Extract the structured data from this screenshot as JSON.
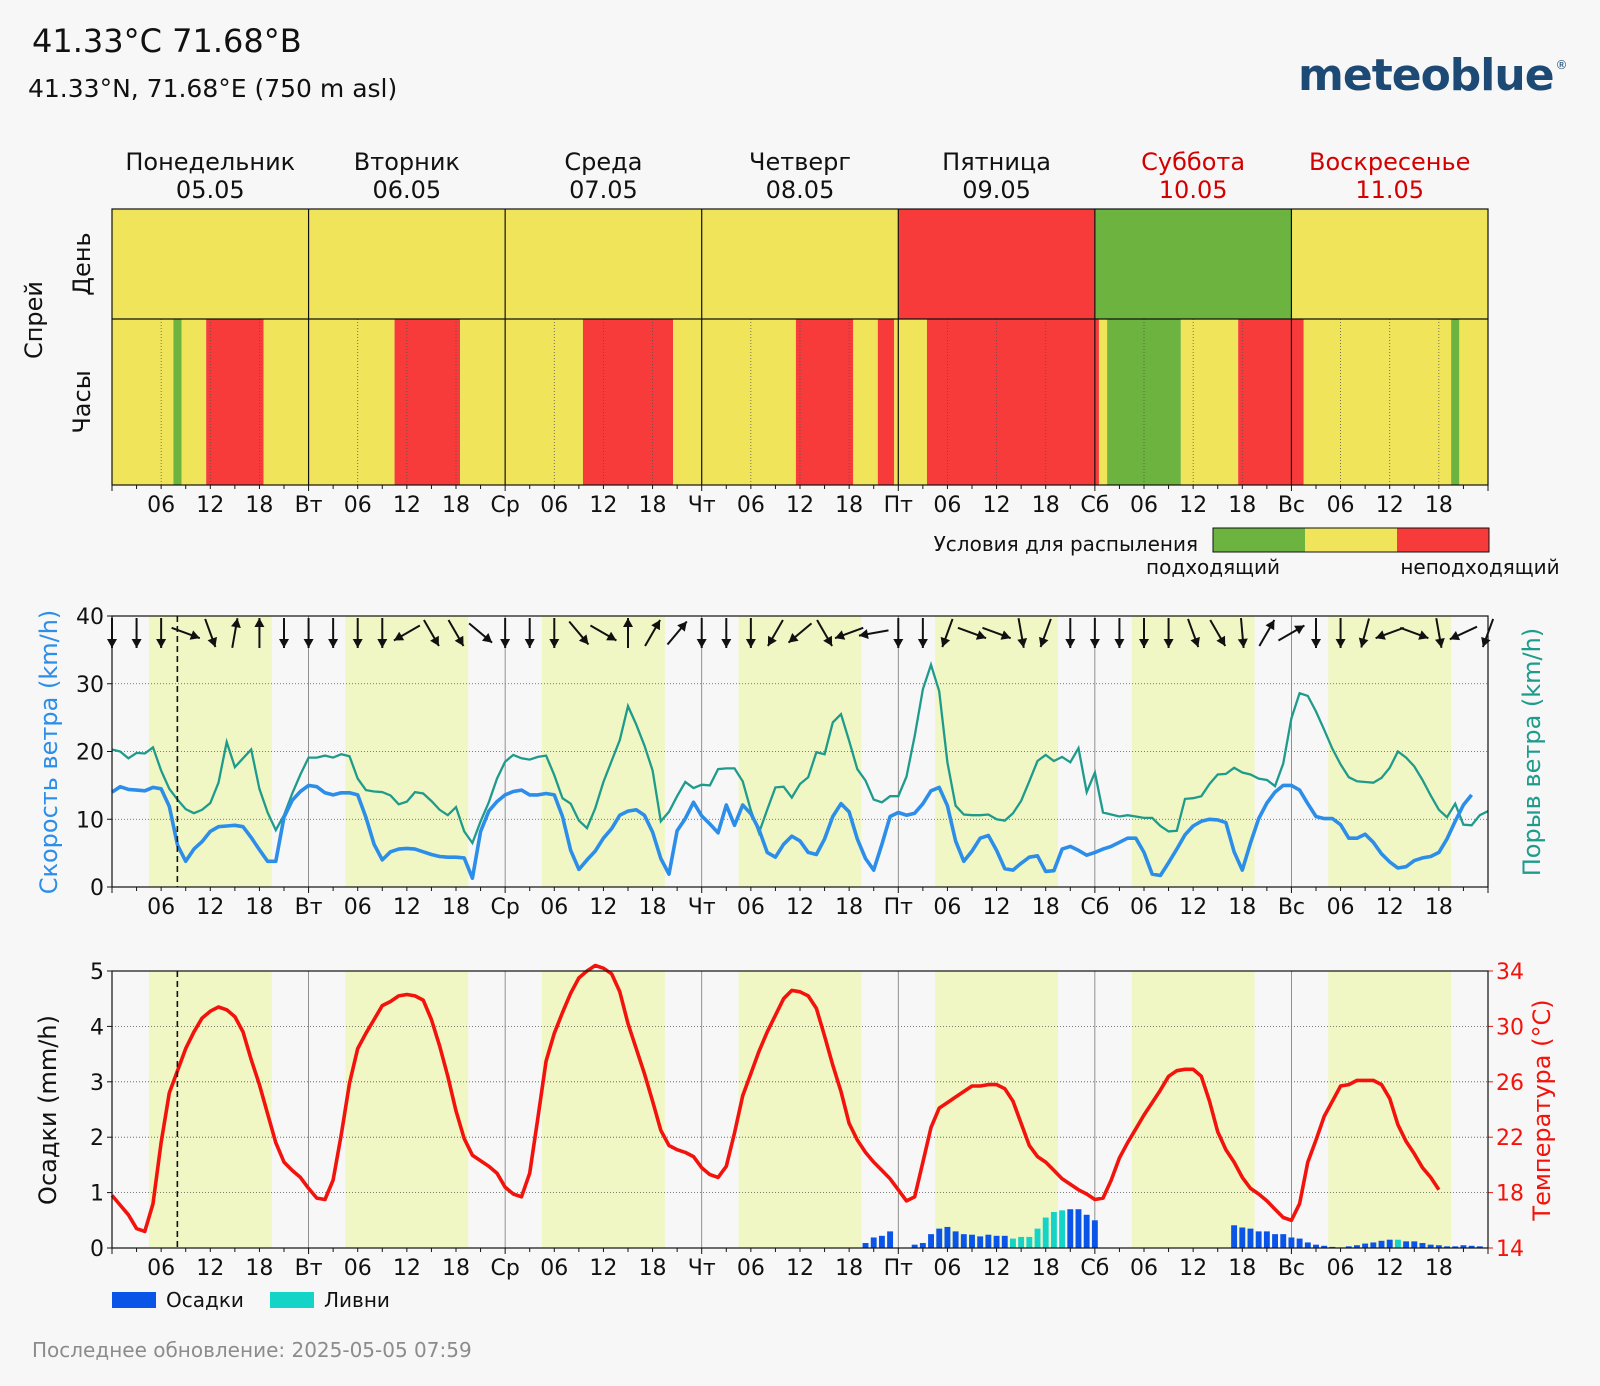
{
  "header": {
    "title": "41.33°C 71.68°В",
    "subtitle": "41.33°N, 71.68°E (750 m asl)",
    "logo": "meteoblue",
    "logo_mark": "®"
  },
  "footer": {
    "updated": "Последнее обновление: 2025-05-05 07:59"
  },
  "colors": {
    "suitable": "#6db33f",
    "neutral": "#f0e55a",
    "unsuitable": "#f73a3a",
    "wind_speed": "#2c8ee8",
    "gust": "#1f9b8c",
    "daylight": "#f1f7c4",
    "temperature": "#f2140c",
    "precip": "#0a55e8",
    "showers": "#14d4c8",
    "weekend": "#d40000"
  },
  "days": [
    {
      "name": "Понедельник",
      "date": "05.05",
      "short": "Пн",
      "weekend": false
    },
    {
      "name": "Вторник",
      "date": "06.05",
      "short": "Вт",
      "weekend": false
    },
    {
      "name": "Среда",
      "date": "07.05",
      "short": "Ср",
      "weekend": false
    },
    {
      "name": "Четверг",
      "date": "08.05",
      "short": "Чт",
      "weekend": false
    },
    {
      "name": "Пятница",
      "date": "09.05",
      "short": "Пт",
      "weekend": false
    },
    {
      "name": "Суббота",
      "date": "10.05",
      "short": "Сб",
      "weekend": true
    },
    {
      "name": "Воскресенье",
      "date": "11.05",
      "short": "Вс",
      "weekend": true
    }
  ],
  "hour_ticks": [
    "06",
    "12",
    "18"
  ],
  "now_hour": 7.98,
  "chart_data": [
    {
      "type": "heatmap",
      "title": "Спрей",
      "row_labels": [
        "День",
        "Часы"
      ],
      "legend": {
        "title": "Условия для распыления",
        "low_label": "подходящий",
        "high_label": "неподходящий"
      },
      "daily": [
        "yellow",
        "yellow",
        "yellow",
        "yellow",
        "red",
        "green",
        "yellow"
      ],
      "hourly_segments": [
        {
          "from": 0,
          "to": 7.5,
          "state": "yellow"
        },
        {
          "from": 7.5,
          "to": 8.5,
          "state": "green"
        },
        {
          "from": 8.5,
          "to": 11.5,
          "state": "yellow"
        },
        {
          "from": 11.5,
          "to": 18.5,
          "state": "red"
        },
        {
          "from": 18.5,
          "to": 34.5,
          "state": "yellow"
        },
        {
          "from": 34.5,
          "to": 42.5,
          "state": "red"
        },
        {
          "from": 42.5,
          "to": 57.5,
          "state": "yellow"
        },
        {
          "from": 57.5,
          "to": 68.5,
          "state": "red"
        },
        {
          "from": 68.5,
          "to": 83.5,
          "state": "yellow"
        },
        {
          "from": 83.5,
          "to": 90.5,
          "state": "red"
        },
        {
          "from": 90.5,
          "to": 93.5,
          "state": "yellow"
        },
        {
          "from": 93.5,
          "to": 95.5,
          "state": "red"
        },
        {
          "from": 95.5,
          "to": 99.5,
          "state": "yellow"
        },
        {
          "from": 99.5,
          "to": 120.5,
          "state": "red"
        },
        {
          "from": 120.5,
          "to": 121.5,
          "state": "yellow"
        },
        {
          "from": 121.5,
          "to": 130.5,
          "state": "green"
        },
        {
          "from": 130.5,
          "to": 137.5,
          "state": "yellow"
        },
        {
          "from": 137.5,
          "to": 145.5,
          "state": "red"
        },
        {
          "from": 145.5,
          "to": 163.5,
          "state": "yellow"
        },
        {
          "from": 163.5,
          "to": 164.5,
          "state": "green"
        },
        {
          "from": 164.5,
          "to": 168,
          "state": "yellow"
        }
      ]
    },
    {
      "type": "line",
      "ylabel": "Скорость ветра (km/h)",
      "y2label": "Порыв ветра (km/h)",
      "ylim": [
        0,
        40
      ],
      "yticks": [
        0,
        10,
        20,
        30,
        40
      ],
      "daylight_hours": [
        4.5,
        19.5
      ],
      "x_hours_wind": [
        0,
        1,
        2,
        3,
        4,
        5,
        6,
        7,
        8,
        9,
        10,
        11,
        12,
        13,
        14,
        15,
        16,
        17,
        18,
        19,
        20,
        21,
        22,
        23,
        24,
        25,
        26,
        27,
        28,
        29,
        30,
        31,
        32,
        33,
        34,
        35,
        36,
        37,
        38,
        39,
        40,
        41,
        42,
        43,
        44,
        45,
        46,
        47,
        48,
        49,
        50,
        51,
        52,
        53,
        54,
        55,
        56,
        57,
        58,
        59,
        60,
        61,
        62,
        63,
        64,
        65,
        66,
        67,
        68,
        69,
        70,
        71,
        72,
        73,
        74,
        75,
        76,
        77,
        78,
        79,
        80,
        81,
        82,
        83,
        84,
        85,
        86,
        87,
        88,
        89,
        90,
        91,
        92,
        93,
        94,
        95,
        96,
        97,
        98,
        99,
        100,
        101,
        102,
        103,
        104,
        105,
        106,
        107,
        108,
        109,
        110,
        111,
        112,
        113,
        114,
        115,
        116,
        117,
        118,
        119,
        120,
        121,
        122,
        123,
        124,
        125,
        126,
        127,
        128,
        129,
        130,
        131,
        132,
        133,
        134,
        135,
        136,
        137,
        138,
        139,
        140,
        141,
        142,
        143,
        144,
        145,
        146,
        147,
        148,
        149,
        150,
        151,
        152,
        153,
        154,
        155,
        156,
        157,
        158,
        159,
        160,
        161,
        162,
        163,
        164,
        165,
        166,
        167,
        168
      ],
      "series": [
        {
          "name": "Скорость ветра (km/h)",
          "values": [
            14,
            14.8,
            14.4,
            14.3,
            14.2,
            14.7,
            14.5,
            11.9,
            6.2,
            3.8,
            5.6,
            6.7,
            8.2,
            8.9,
            9,
            9.1,
            8.9,
            7.3,
            5.5,
            3.8,
            3.8,
            10.3,
            12.8,
            14.1,
            15,
            14.8,
            13.9,
            13.6,
            13.9,
            13.9,
            13.6,
            10.3,
            6.3,
            4,
            5.2,
            5.6,
            5.7,
            5.6,
            5.2,
            4.8,
            4.5,
            4.4,
            4.4,
            4.3,
            1.3,
            8.2,
            11.2,
            12.6,
            13.6,
            14.1,
            14.3,
            13.6,
            13.6,
            13.8,
            13.6,
            10.4,
            5.4,
            2.6,
            4,
            5.3,
            7.2,
            8.6,
            10.6,
            11.2,
            11.4,
            10.6,
            8.1,
            4.2,
            1.9,
            8.3,
            10.1,
            12.5,
            10.5,
            9.3,
            8,
            12.1,
            9.1,
            12.1,
            10.8,
            8.5,
            5.1,
            4.4,
            6.3,
            7.5,
            6.8,
            5.1,
            4.8,
            7.1,
            10.4,
            12.3,
            11.1,
            7.1,
            4.2,
            2.5,
            6.3,
            10.4,
            11,
            10.6,
            10.9,
            12.3,
            14.2,
            14.7,
            12,
            6.8,
            3.8,
            5.3,
            7.2,
            7.6,
            5.4,
            2.7,
            2.5,
            3.5,
            4.4,
            4.6,
            2.3,
            2.4,
            5.6,
            6,
            5.4,
            4.7,
            5.1,
            5.6,
            6,
            6.6,
            7.2,
            7.2,
            5.1,
            1.9,
            1.7,
            3.6,
            5.6,
            7.7,
            9,
            9.7,
            10,
            9.9,
            9.5,
            5.2,
            2.5,
            6.5,
            10.1,
            12.4,
            14,
            15,
            15,
            14.3,
            12.3,
            10.4,
            10.1,
            10.1,
            9.2,
            7.2,
            7.2,
            7.8,
            6.6,
            4.9,
            3.7,
            2.8,
            3,
            3.9,
            4.3,
            4.5,
            5.1,
            7.1,
            9.7,
            12.1,
            13.6
          ]
        },
        {
          "name": "Порыв ветра (km/h)",
          "values": [
            20.3,
            20,
            19,
            19.8,
            19.7,
            20.6,
            17.2,
            14.5,
            12.9,
            11.5,
            10.9,
            11.4,
            12.4,
            15.4,
            21.4,
            17.7,
            19,
            20.3,
            14.5,
            11,
            8.4,
            10.6,
            13.8,
            16.6,
            19.1,
            19.1,
            19.4,
            19.1,
            19.6,
            19.3,
            16,
            14.3,
            14.1,
            14,
            13.5,
            12.2,
            12.6,
            14,
            13.8,
            12.7,
            11.4,
            10.6,
            11.8,
            8.2,
            6.5,
            9.7,
            12.5,
            16,
            18.5,
            19.5,
            19,
            18.8,
            19.2,
            19.4,
            16.5,
            13.1,
            12.3,
            9.8,
            8.7,
            11.6,
            15.5,
            18.6,
            21.7,
            26.7,
            24,
            20.9,
            17.2,
            9.7,
            11.1,
            13.4,
            15.5,
            14.6,
            15.1,
            15,
            17.4,
            17.5,
            17.5,
            15.6,
            11.3,
            8,
            11.4,
            14.7,
            14.8,
            13.2,
            15.2,
            16.2,
            19.9,
            19.6,
            24.3,
            25.5,
            21.6,
            17.4,
            15.7,
            12.9,
            12.5,
            13.4,
            13.4,
            16.3,
            22.3,
            29.2,
            32.8,
            28.9,
            18.4,
            12,
            10.7,
            10.6,
            10.6,
            10.7,
            10,
            9.8,
            10.9,
            12.7,
            15.6,
            18.6,
            19.5,
            18.6,
            19.2,
            18.4,
            20.5,
            14,
            16.9,
            11,
            10.7,
            10.4,
            10.6,
            10.4,
            10.2,
            10.2,
            9,
            8.2,
            8.3,
            13,
            13.1,
            13.4,
            15.2,
            16.6,
            16.7,
            17.6,
            16.9,
            16.6,
            16,
            15.8,
            14.9,
            18.2,
            24.9,
            28.6,
            28.2,
            25.9,
            23.2,
            20.4,
            18.1,
            16.2,
            15.6,
            15.5,
            15.4,
            16.1,
            17.6,
            20,
            19.1,
            17.8,
            15.8,
            13.5,
            11.4,
            10.3,
            12.3,
            9.2,
            9.1,
            10.6,
            11.2,
            12.2,
            13.9,
            15.1,
            16.1,
            16.6
          ]
        }
      ],
      "direction_x_hours": [
        0,
        3,
        6,
        9,
        12,
        15,
        18,
        21,
        24,
        27,
        30,
        33,
        36,
        39,
        42,
        45,
        48,
        51,
        54,
        57,
        60,
        63,
        66,
        69,
        72,
        75,
        78,
        81,
        84,
        87,
        90,
        93,
        96,
        99,
        102,
        105,
        108,
        111,
        114,
        117,
        120,
        123,
        126,
        129,
        132,
        135,
        138,
        141,
        144,
        147,
        150,
        153,
        156,
        159,
        162,
        165,
        168
      ],
      "wind_direction_to_deg": [
        180,
        180,
        180,
        110,
        160,
        10,
        0,
        180,
        180,
        180,
        180,
        180,
        240,
        150,
        150,
        130,
        180,
        180,
        180,
        140,
        120,
        0,
        30,
        40,
        180,
        180,
        180,
        210,
        230,
        150,
        250,
        260,
        180,
        180,
        200,
        110,
        110,
        170,
        200,
        180,
        180,
        180,
        180,
        180,
        160,
        150,
        175,
        30,
        60,
        180,
        180,
        195,
        250,
        110,
        170,
        245,
        200
      ]
    },
    {
      "type": "bar",
      "ylabel": "Осадки (mm/h)",
      "y2label": "Температура (°C)",
      "ylim": [
        0,
        5
      ],
      "yticks": [
        0,
        1,
        2,
        3,
        4,
        5
      ],
      "y2lim": [
        14,
        34
      ],
      "y2ticks": [
        14,
        18,
        22,
        26,
        30,
        34
      ],
      "legend": [
        "Осадки",
        "Ливни"
      ],
      "daylight_hours": [
        4.5,
        19.5
      ],
      "temperature_c": [
        17.8,
        17.1,
        16.4,
        15.4,
        15.2,
        17.2,
        21.6,
        25.2,
        26.8,
        28.4,
        29.6,
        30.6,
        31.1,
        31.4,
        31.2,
        30.7,
        29.6,
        27.6,
        25.8,
        23.7,
        21.6,
        20.2,
        19.6,
        19.1,
        18.3,
        17.6,
        17.5,
        18.9,
        22.2,
        25.9,
        28.4,
        29.5,
        30.5,
        31.5,
        31.8,
        32.2,
        32.3,
        32.2,
        31.9,
        30.5,
        28.6,
        26.4,
        23.9,
        21.9,
        20.7,
        20.3,
        19.9,
        19.4,
        18.4,
        17.9,
        17.7,
        19.4,
        23.4,
        27.5,
        29.5,
        31,
        32.4,
        33.5,
        34,
        34.4,
        34.2,
        33.8,
        32.5,
        30.2,
        28.4,
        26.6,
        24.6,
        22.5,
        21.4,
        21.1,
        20.9,
        20.6,
        19.8,
        19.3,
        19.1,
        19.9,
        22.3,
        25,
        26.6,
        28.2,
        29.6,
        30.8,
        32,
        32.6,
        32.5,
        32.2,
        31.3,
        29.3,
        27.2,
        25.3,
        23,
        21.8,
        20.9,
        20.2,
        19.6,
        19,
        18.2,
        17.4,
        17.7,
        20.2,
        22.7,
        24.1,
        24.5,
        24.9,
        25.3,
        25.7,
        25.7,
        25.8,
        25.8,
        25.5,
        24.6,
        23,
        21.4,
        20.6,
        20.2,
        19.6,
        19,
        18.6,
        18.2,
        17.9,
        17.5,
        17.6,
        18.9,
        20.5,
        21.6,
        22.6,
        23.6,
        24.5,
        25.4,
        26.4,
        26.8,
        26.9,
        26.9,
        26.4,
        24.6,
        22.4,
        21.1,
        20.2,
        19.1,
        18.3,
        17.9,
        17.4,
        16.8,
        16.2,
        16,
        17.2,
        20.2,
        21.8,
        23.5,
        24.6,
        25.7,
        25.8,
        26.1,
        26.1,
        26.1,
        25.8,
        24.8,
        22.9,
        21.7,
        20.8,
        19.8,
        19.1,
        18.2
      ],
      "precip_x_hours": [
        92,
        93,
        94,
        95,
        98,
        99,
        100,
        101,
        102,
        103,
        104,
        105,
        106,
        107,
        108,
        109,
        110,
        111,
        112,
        113,
        114,
        115,
        116,
        117,
        118,
        119,
        120,
        137,
        138,
        139,
        140,
        141,
        142,
        143,
        144,
        145,
        146,
        147,
        148,
        149,
        150,
        151,
        152,
        153,
        154,
        155,
        156,
        157,
        158,
        159,
        160,
        161,
        162,
        163,
        164,
        165,
        166,
        167
      ],
      "precip_mmh": [
        0.09,
        0.19,
        0.22,
        0.3,
        0.06,
        0.09,
        0.25,
        0.35,
        0.38,
        0.3,
        0.25,
        0.24,
        0.21,
        0.24,
        0.22,
        0.22,
        0.17,
        0.2,
        0.2,
        0.35,
        0.55,
        0.65,
        0.68,
        0.7,
        0.7,
        0.6,
        0.5,
        0.41,
        0.37,
        0.35,
        0.3,
        0.3,
        0.25,
        0.25,
        0.19,
        0.17,
        0.1,
        0.06,
        0.04,
        0.02,
        0.01,
        0.03,
        0.05,
        0.08,
        0.1,
        0.13,
        0.15,
        0.15,
        0.12,
        0.12,
        0.09,
        0.06,
        0.05,
        0.03,
        0.03,
        0.05,
        0.04,
        0.03
      ],
      "shower_flags": [
        0,
        0,
        0,
        0,
        0,
        0,
        0,
        0,
        0,
        0,
        0,
        0,
        0,
        0,
        0,
        0,
        1,
        1,
        1,
        1,
        1,
        1,
        1,
        0,
        0,
        0,
        0,
        0,
        0,
        0,
        0,
        0,
        0,
        0,
        0,
        0,
        0,
        0,
        0,
        0,
        0,
        0,
        0,
        0,
        0,
        0,
        0,
        1,
        0,
        0,
        0,
        0,
        0,
        0,
        0,
        0,
        0,
        0
      ]
    }
  ]
}
